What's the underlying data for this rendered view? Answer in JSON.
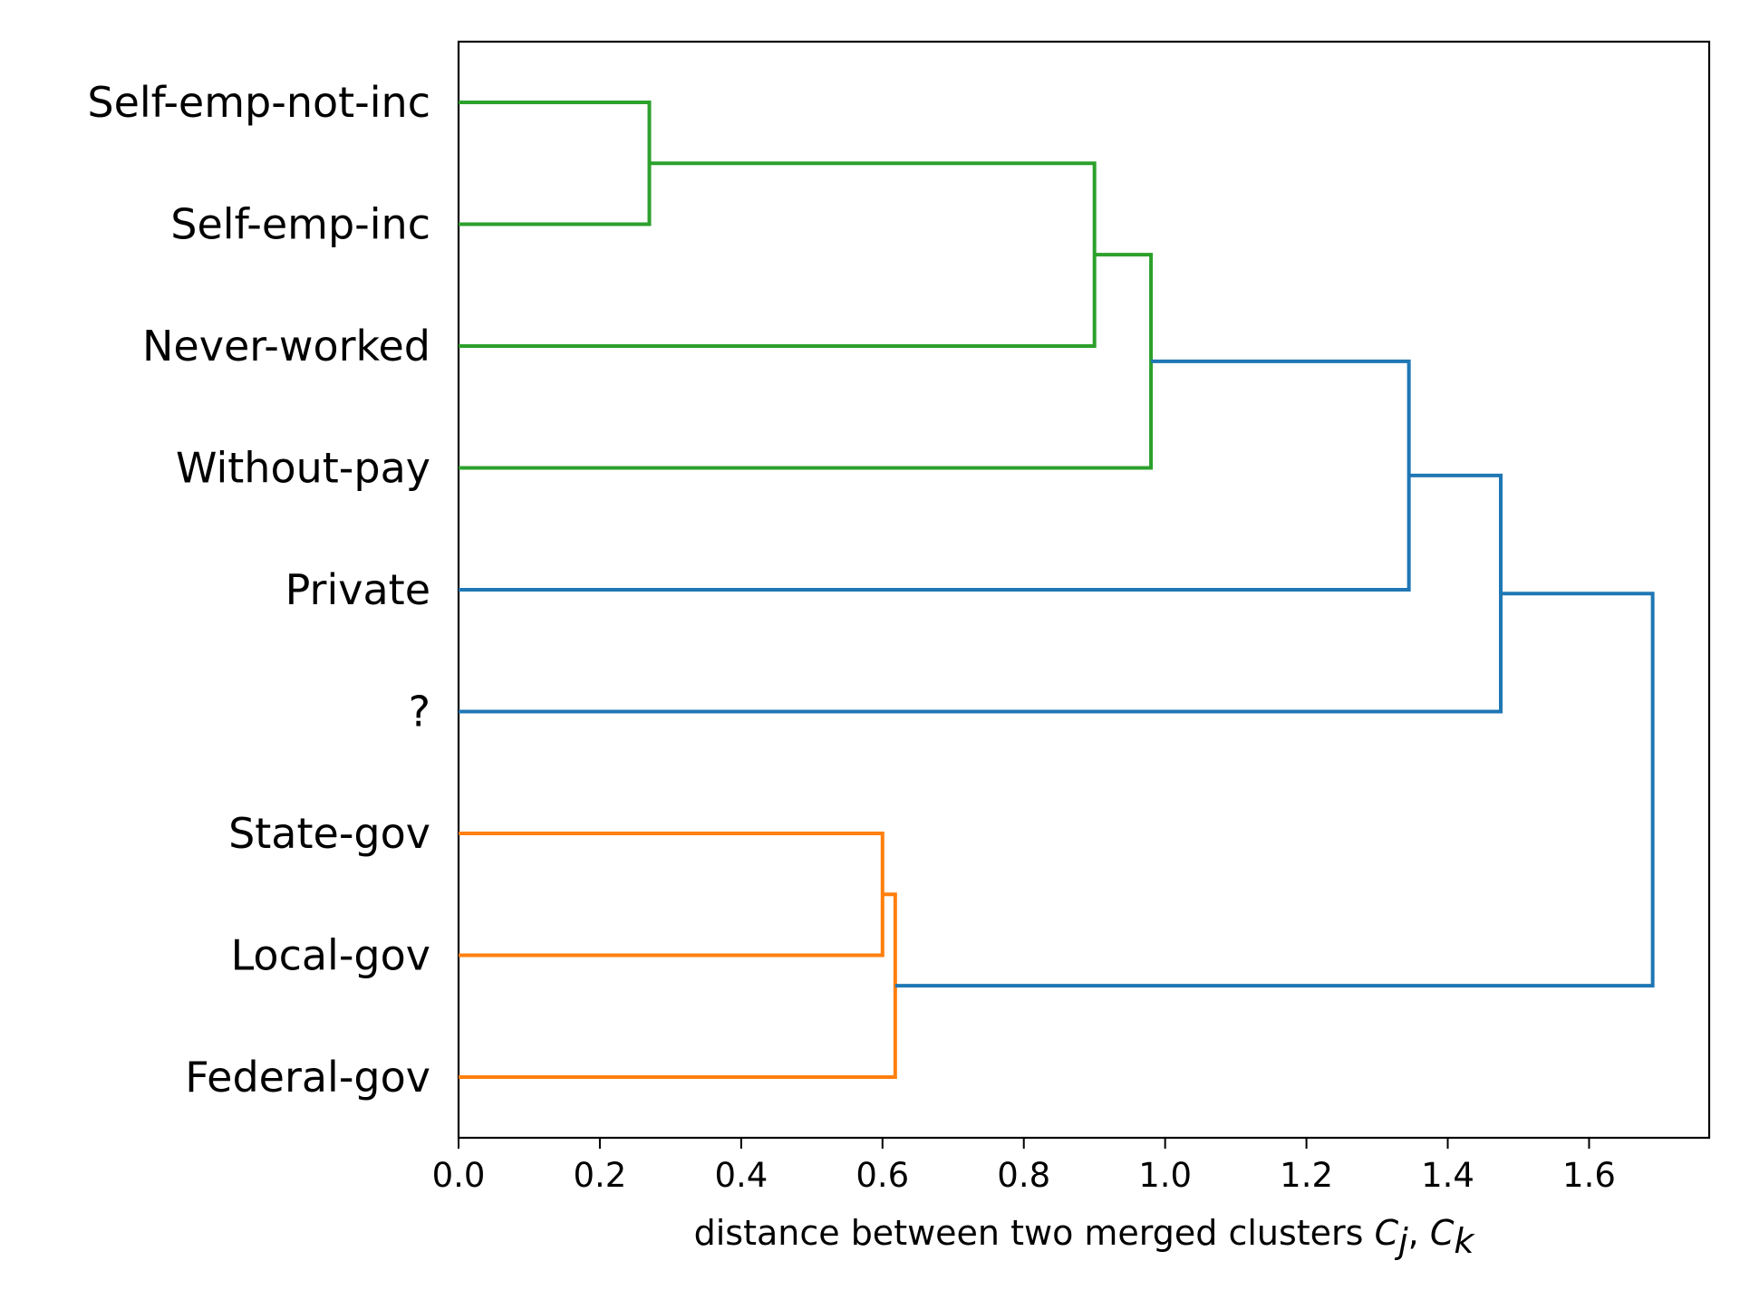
{
  "chart_data": {
    "type": "dendrogram",
    "orientation": "left",
    "xlabel": {
      "prefix": "distance between two merged clusters ",
      "var1": "C",
      "sub1": "j",
      "sep": ", ",
      "var2": "C",
      "sub2": "k"
    },
    "xlim": [
      0,
      1.77
    ],
    "xticks": [
      0.0,
      0.2,
      0.4,
      0.6,
      0.8,
      1.0,
      1.2,
      1.4,
      1.6
    ],
    "xtick_labels": [
      "0.0",
      "0.2",
      "0.4",
      "0.6",
      "0.8",
      "1.0",
      "1.2",
      "1.4",
      "1.6"
    ],
    "leaves": [
      "Self-emp-not-inc",
      "Self-emp-inc",
      "Never-worked",
      "Without-pay",
      "Private",
      "?",
      "State-gov",
      "Local-gov",
      "Federal-gov"
    ],
    "colors": {
      "green": "#2ca02c",
      "orange": "#ff7f0e",
      "blue": "#1f77b4"
    },
    "merges": [
      {
        "id": "m1",
        "left": "Self-emp-not-inc",
        "right": "Self-emp-inc",
        "distance": 0.27,
        "color": "green"
      },
      {
        "id": "m2",
        "left": "m1",
        "right": "Never-worked",
        "distance": 0.9,
        "color": "green"
      },
      {
        "id": "m3",
        "left": "m2",
        "right": "Without-pay",
        "distance": 0.98,
        "color": "green"
      },
      {
        "id": "m4",
        "left": "m3",
        "right": "Private",
        "distance": 1.345,
        "color": "blue"
      },
      {
        "id": "m5",
        "left": "m4",
        "right": "?",
        "distance": 1.475,
        "color": "blue"
      },
      {
        "id": "m6",
        "left": "State-gov",
        "right": "Local-gov",
        "distance": 0.6,
        "color": "orange"
      },
      {
        "id": "m7",
        "left": "m6",
        "right": "Federal-gov",
        "distance": 0.618,
        "color": "orange"
      },
      {
        "id": "m8",
        "left": "m5",
        "right": "m7",
        "distance": 1.69,
        "color": "blue"
      }
    ]
  }
}
